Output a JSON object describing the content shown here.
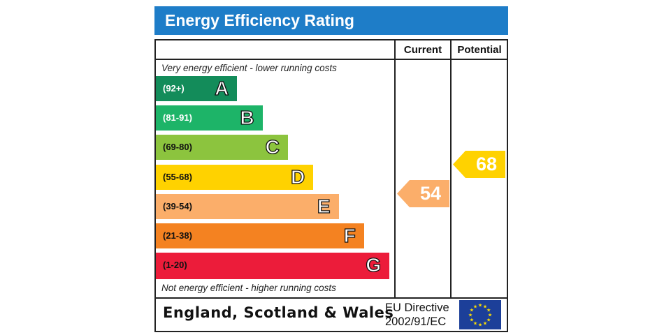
{
  "chart_data": {
    "type": "bar",
    "title": "Energy Efficiency Rating",
    "columns": [
      "Current",
      "Potential"
    ],
    "top_caption": "Very energy efficient - lower running costs",
    "bottom_caption": "Not energy efficient - higher running costs",
    "bands": [
      {
        "letter": "A",
        "range": "(92+)",
        "color": "#138c5a",
        "text_color": "#ffffff",
        "length": 1
      },
      {
        "letter": "B",
        "range": "(81-91)",
        "color": "#1db468",
        "text_color": "#ffffff",
        "length": 2
      },
      {
        "letter": "C",
        "range": "(69-80)",
        "color": "#8cc43e",
        "text_color": "#111111",
        "length": 3
      },
      {
        "letter": "D",
        "range": "(55-68)",
        "color": "#ffd200",
        "text_color": "#111111",
        "length": 4
      },
      {
        "letter": "E",
        "range": "(39-54)",
        "color": "#fbae6a",
        "text_color": "#111111",
        "length": 5
      },
      {
        "letter": "F",
        "range": "(21-38)",
        "color": "#f48221",
        "text_color": "#111111",
        "length": 6
      },
      {
        "letter": "G",
        "range": "(1-20)",
        "color": "#ec1c3a",
        "text_color": "#111111",
        "length": 7
      }
    ],
    "current": {
      "value": 54,
      "band": "E",
      "color": "#fbae6a"
    },
    "potential": {
      "value": 68,
      "band": "D",
      "color": "#ffd200"
    }
  },
  "footer": {
    "country": "England, Scotland & Wales",
    "directive_line1": "EU Directive",
    "directive_line2": "2002/91/EC"
  }
}
